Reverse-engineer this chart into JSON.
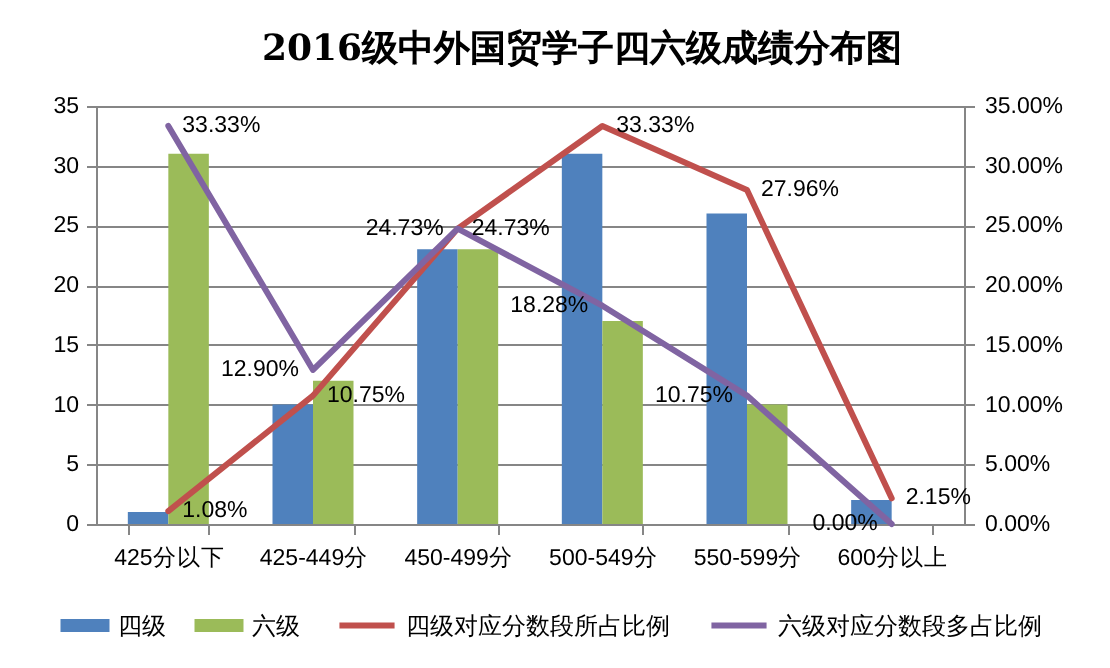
{
  "chart_data": {
    "type": "bar",
    "title": "2016级中外国贸学子四六级成绩分布图",
    "categories": [
      "425分以下",
      "425-449分",
      "450-499分",
      "500-549分",
      "550-599分",
      "600分以上"
    ],
    "series": [
      {
        "name": "四级",
        "color": "#4f81bd",
        "values": [
          1,
          10,
          23,
          31,
          26,
          2
        ]
      },
      {
        "name": "六级",
        "color": "#9bbb59",
        "values": [
          31,
          12,
          23,
          17,
          10,
          0
        ]
      },
      {
        "name": "四级对应分数段所占比例",
        "type": "line",
        "axis": "y2",
        "color": "#c0504d",
        "values": [
          1.08,
          10.75,
          24.73,
          33.33,
          27.96,
          2.15
        ],
        "value_labels": [
          "1.08%",
          "10.75%",
          "24.73%",
          "33.33%",
          "27.96%",
          "2.15%"
        ]
      },
      {
        "name": "六级对应分数段多占比例",
        "type": "line",
        "axis": "y2",
        "color": "#8064a2",
        "values": [
          33.33,
          12.9,
          24.73,
          18.28,
          10.75,
          0
        ],
        "value_labels": [
          "33.33%",
          "12.90%",
          "24.73%",
          "18.28%",
          "10.75%",
          "0.00%"
        ]
      }
    ],
    "ylim": [
      0,
      35
    ],
    "yticks": [
      0,
      5,
      10,
      15,
      20,
      25,
      30,
      35
    ],
    "y2lim": [
      0,
      35
    ],
    "y2ticks": [
      {
        "value": 0,
        "label": "0.00%"
      },
      {
        "value": 5,
        "label": "5.00%"
      },
      {
        "value": 10,
        "label": "10.00%"
      },
      {
        "value": 15,
        "label": "15.00%"
      },
      {
        "value": 20,
        "label": "20.00%"
      },
      {
        "value": 25,
        "label": "25.00%"
      },
      {
        "value": 30,
        "label": "30.00%"
      },
      {
        "value": 35,
        "label": "35.00%"
      }
    ],
    "grid": "y",
    "legend": "bottom",
    "marker": "none",
    "line_style": "solid"
  }
}
